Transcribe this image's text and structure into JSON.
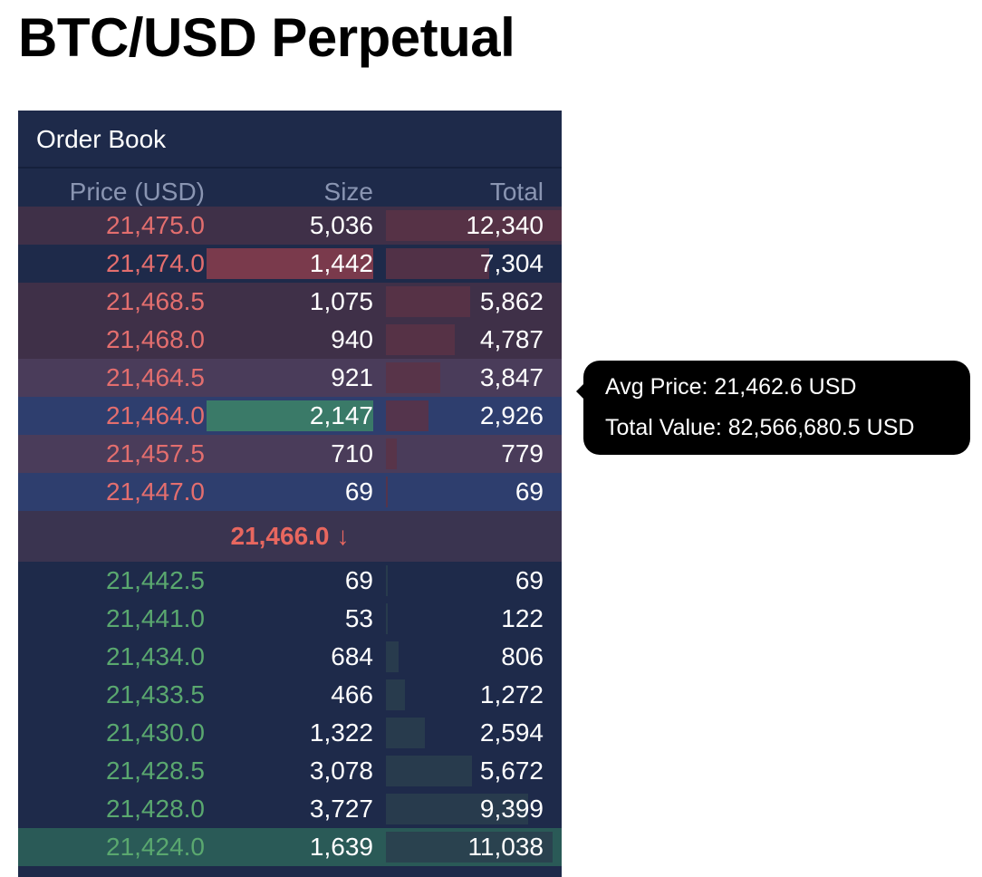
{
  "page": {
    "title": "BTC/USD Perpetual"
  },
  "order_book": {
    "title": "Order Book",
    "columns": {
      "price": "Price (USD)",
      "size": "Size",
      "total": "Total"
    },
    "asks": [
      {
        "price": "21,475.0",
        "size": "5,036",
        "total": "12,340",
        "highlight": "ask-row"
      },
      {
        "price": "21,474.0",
        "size": "1,442",
        "total": "7,304",
        "size_bar": "ask",
        "total_fill": 0.59
      },
      {
        "price": "21,468.5",
        "size": "1,075",
        "total": "5,862",
        "highlight": "ask-row",
        "total_fill": 0.48
      },
      {
        "price": "21,468.0",
        "size": "940",
        "total": "4,787",
        "highlight": "ask-row",
        "total_fill": 0.39
      },
      {
        "price": "21,464.5",
        "size": "921",
        "total": "3,847",
        "highlight": "hover-row",
        "total_fill": 0.31
      },
      {
        "price": "21,464.0",
        "size": "2,147",
        "total": "2,926",
        "highlight": "hover-blue",
        "size_bar": "bid",
        "total_fill": 0.24
      },
      {
        "price": "21,457.5",
        "size": "710",
        "total": "779",
        "highlight": "hover-row",
        "total_fill": 0.06
      },
      {
        "price": "21,447.0",
        "size": "69",
        "total": "69",
        "highlight": "hover-blue",
        "total_fill": 0.01
      }
    ],
    "spread": {
      "price": "21,466.0",
      "arrow": "↓",
      "direction": "down"
    },
    "bids": [
      {
        "price": "21,442.5",
        "size": "69",
        "total": "69",
        "total_fill": 0.01
      },
      {
        "price": "21,441.0",
        "size": "53",
        "total": "122",
        "total_fill": 0.01
      },
      {
        "price": "21,434.0",
        "size": "684",
        "total": "806",
        "total_fill": 0.07
      },
      {
        "price": "21,433.5",
        "size": "466",
        "total": "1,272",
        "total_fill": 0.11
      },
      {
        "price": "21,430.0",
        "size": "1,322",
        "total": "2,594",
        "total_fill": 0.22
      },
      {
        "price": "21,428.5",
        "size": "3,078",
        "total": "5,672",
        "total_fill": 0.49
      },
      {
        "price": "21,428.0",
        "size": "3,727",
        "total": "9,399",
        "total_fill": 0.81
      },
      {
        "price": "21,424.0",
        "size": "1,639",
        "total": "11,038",
        "highlight": "bid-row",
        "total_fill": 0.95
      }
    ]
  },
  "tooltip": {
    "avg_price": "Avg Price: 21,462.6 USD",
    "total_value": "Total Value: 82,566,680.5 USD"
  },
  "colors": {
    "panel_bg": "#1e2a4a",
    "ask_text": "#e36e6e",
    "bid_text": "#5aa86f",
    "spread_text": "#e8675f",
    "ask_row_bg": "#3f3048",
    "hover_row_bg": "#4a3c5a",
    "hover_blue_bg": "#2e3e6e",
    "bid_row_bg": "#2a5a57",
    "ask_bar": "#7a3a4c",
    "bid_bar": "#3a7a68",
    "ask_total_bar": "#5a3347",
    "bid_total_bar": "#2a3e4e"
  }
}
